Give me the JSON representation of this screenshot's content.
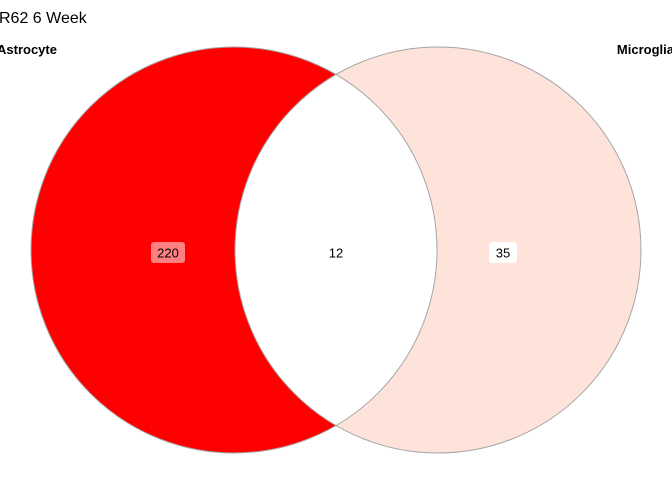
{
  "title": "R62 6 Week",
  "sets": [
    {
      "name": "Astrocyte",
      "color": "#ff0000"
    },
    {
      "name": "Microglia",
      "color": "#fde3da"
    }
  ],
  "regions": {
    "left_only": {
      "count": "220",
      "fill": "#ff0000",
      "label_bg": "#ff8080"
    },
    "overlap": {
      "count": "12",
      "fill": "#ffffff",
      "label_bg": "#ffffff"
    },
    "right_only": {
      "count": "35",
      "fill": "#fde3da",
      "label_bg": "#ffffff"
    }
  },
  "outline_color": "#a6a6a6",
  "chart_data": {
    "type": "venn",
    "title": "R62 6 Week",
    "sets": [
      "Astrocyte",
      "Microglia"
    ],
    "values": {
      "Astrocyte only": 220,
      "Astrocyte & Microglia": 12,
      "Microglia only": 35
    }
  }
}
